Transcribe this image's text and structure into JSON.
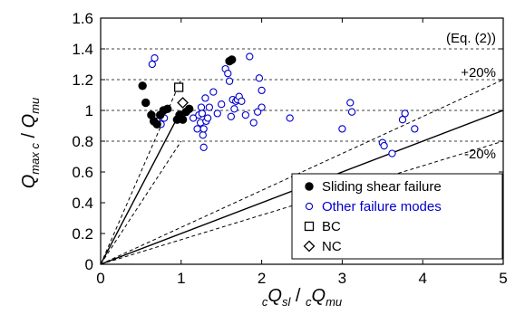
{
  "chart_data": {
    "type": "scatter",
    "x_label": {
      "pre_sub": "c",
      "main": "Q",
      "sub": "sl",
      "sep": " / ",
      "pre_sub2": "c",
      "main2": "Q",
      "sub2": "mu"
    },
    "y_label": {
      "main": "Q",
      "sub": "max c",
      "sep": " / ",
      "main2": "Q",
      "sub2": "mu"
    },
    "xlim": [
      0,
      5
    ],
    "ylim": [
      0,
      1.6
    ],
    "x_ticks": [
      "0",
      "1",
      "2",
      "3",
      "4",
      "5"
    ],
    "y_ticks": [
      "0",
      "0.2",
      "0.4",
      "0.6",
      "0.8",
      "1",
      "1.2",
      "1.4",
      "1.6"
    ],
    "grid": "dashed horizontal lines at 0.2 intervals above 0.8",
    "annotations": {
      "equation": "(Eq. (2))",
      "plus": "+20%",
      "minus": "-20%"
    },
    "reference_lines": [
      {
        "style": "solid",
        "from": [
          0,
          0
        ],
        "to": [
          5,
          1
        ]
      },
      {
        "style": "dashed",
        "from": [
          0,
          0
        ],
        "to": [
          5,
          1.2
        ]
      },
      {
        "style": "dashed",
        "from": [
          0,
          0
        ],
        "to": [
          5,
          0.8
        ]
      },
      {
        "style": "solid",
        "from": [
          0,
          0
        ],
        "to": [
          1,
          1
        ]
      },
      {
        "style": "dashed",
        "from": [
          0,
          0
        ],
        "to": [
          1,
          1.2
        ]
      },
      {
        "style": "dashed",
        "from": [
          0,
          0
        ],
        "to": [
          1,
          0.8
        ]
      }
    ],
    "legend_position": "bottom-right",
    "series": [
      {
        "name": "Sliding shear failure",
        "marker": "filled-circle",
        "color": "#000000",
        "points": [
          [
            0.52,
            1.16
          ],
          [
            0.56,
            1.05
          ],
          [
            0.63,
            0.97
          ],
          [
            0.66,
            0.93
          ],
          [
            0.7,
            0.91
          ],
          [
            0.74,
            0.97
          ],
          [
            0.78,
            1.0
          ],
          [
            0.83,
            1.01
          ],
          [
            0.95,
            0.94
          ],
          [
            0.98,
            0.97
          ],
          [
            1.02,
            0.94
          ],
          [
            1.06,
            0.99
          ],
          [
            1.1,
            1.01
          ],
          [
            1.6,
            1.32
          ],
          [
            1.63,
            1.33
          ]
        ]
      },
      {
        "name": "Other failure modes",
        "marker": "open-circle",
        "color": "#0000cc",
        "points": [
          [
            0.64,
            1.3
          ],
          [
            0.67,
            1.34
          ],
          [
            0.7,
            0.93
          ],
          [
            0.75,
            0.91
          ],
          [
            0.79,
            0.95
          ],
          [
            1.1,
            1.01
          ],
          [
            1.15,
            0.95
          ],
          [
            1.2,
            0.88
          ],
          [
            1.22,
            0.97
          ],
          [
            1.24,
            0.92
          ],
          [
            1.25,
            1.02
          ],
          [
            1.26,
            0.98
          ],
          [
            1.27,
            0.84
          ],
          [
            1.28,
            0.76
          ],
          [
            1.28,
            0.88
          ],
          [
            1.3,
            1.08
          ],
          [
            1.31,
            0.93
          ],
          [
            1.33,
            0.95
          ],
          [
            1.35,
            1.02
          ],
          [
            1.4,
            1.12
          ],
          [
            1.45,
            0.98
          ],
          [
            1.5,
            1.04
          ],
          [
            1.55,
            1.27
          ],
          [
            1.58,
            1.24
          ],
          [
            1.6,
            1.19
          ],
          [
            1.62,
            0.96
          ],
          [
            1.64,
            1.07
          ],
          [
            1.66,
            1.01
          ],
          [
            1.68,
            1.06
          ],
          [
            1.7,
            1.07
          ],
          [
            1.72,
            1.09
          ],
          [
            1.75,
            1.06
          ],
          [
            1.8,
            0.97
          ],
          [
            1.85,
            1.35
          ],
          [
            1.9,
            0.92
          ],
          [
            1.95,
            0.99
          ],
          [
            1.97,
            1.21
          ],
          [
            2.0,
            1.02
          ],
          [
            2.0,
            1.13
          ],
          [
            2.35,
            0.95
          ],
          [
            3.0,
            0.88
          ],
          [
            3.1,
            1.05
          ],
          [
            3.12,
            0.99
          ],
          [
            3.5,
            0.79
          ],
          [
            3.52,
            0.77
          ],
          [
            3.62,
            0.72
          ],
          [
            3.75,
            0.94
          ],
          [
            3.78,
            0.98
          ],
          [
            3.9,
            0.88
          ]
        ]
      },
      {
        "name": "BC",
        "marker": "open-square",
        "color": "#000000",
        "points": [
          [
            0.97,
            1.15
          ]
        ]
      },
      {
        "name": "NC",
        "marker": "open-diamond",
        "color": "#000000",
        "points": [
          [
            1.02,
            1.05
          ]
        ]
      }
    ]
  }
}
